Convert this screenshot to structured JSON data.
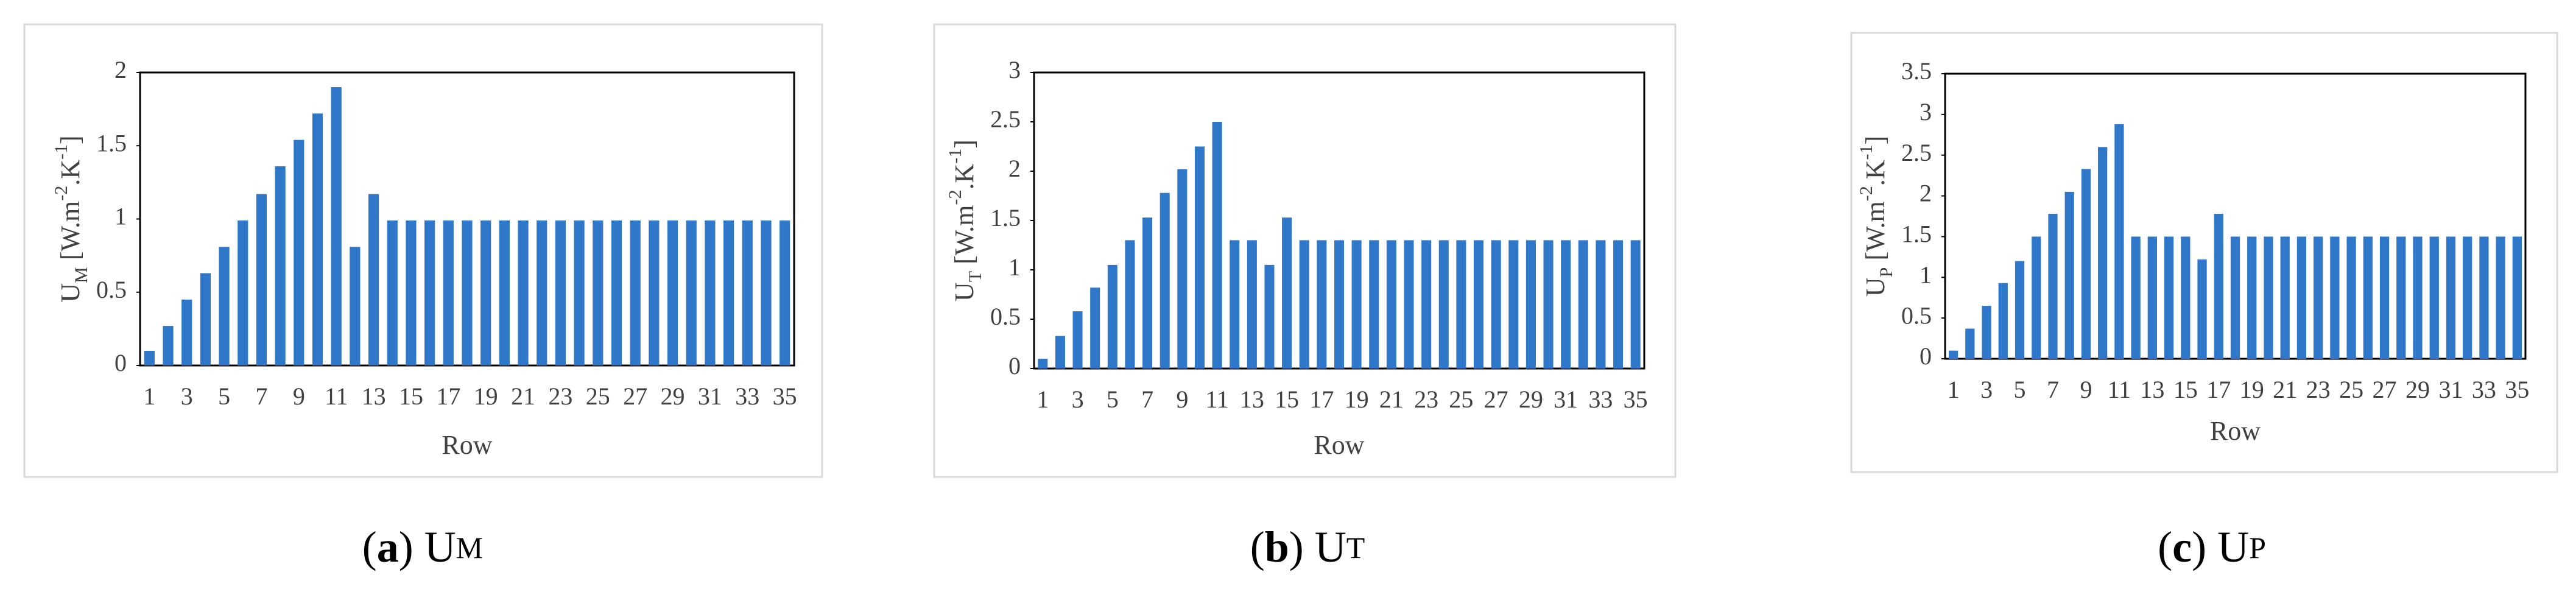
{
  "chart_data": [
    {
      "type": "bar",
      "color": "#2f77c8",
      "y_label": {
        "base": "U",
        "sub": "M",
        "unit": " [W.m",
        "sup1": "-2",
        "unit2": ".K",
        "sup2": "-1",
        "close": "]"
      },
      "x_label": "Row",
      "caption": {
        "open": "(",
        "letter": "a",
        "close": ")",
        "base": " U",
        "sub": "M"
      },
      "categories": [
        "1",
        null,
        "3",
        null,
        "5",
        null,
        "7",
        null,
        "9",
        null,
        "11",
        null,
        "13",
        null,
        "15",
        null,
        "17",
        null,
        "19",
        null,
        "21",
        null,
        "23",
        null,
        "25",
        null,
        "27",
        null,
        "29",
        null,
        "31",
        null,
        "33",
        null,
        "35"
      ],
      "values": [
        0.1,
        0.27,
        0.45,
        0.63,
        0.81,
        0.99,
        1.17,
        1.36,
        1.54,
        1.72,
        1.9,
        0.81,
        1.17,
        0.99,
        0.99,
        0.99,
        0.99,
        0.99,
        0.99,
        0.99,
        0.99,
        0.99,
        0.99,
        0.99,
        0.99,
        0.99,
        0.99,
        0.99,
        0.99,
        0.99,
        0.99,
        0.99,
        0.99,
        0.99,
        0.99
      ],
      "ylim": [
        0,
        2
      ],
      "yticks": [
        0,
        0.5,
        1,
        1.5,
        2
      ]
    },
    {
      "type": "bar",
      "color": "#2f77c8",
      "y_label": {
        "base": "U",
        "sub": "T",
        "unit": " [W.m",
        "sup1": "-2",
        "unit2": ".K",
        "sup2": "-1",
        "close": "]"
      },
      "x_label": "Row",
      "caption": {
        "open": "(",
        "letter": "b",
        "close": ")",
        "base": " U",
        "sub": "T"
      },
      "categories": [
        "1",
        null,
        "3",
        null,
        "5",
        null,
        "7",
        null,
        "9",
        null,
        "11",
        null,
        "13",
        null,
        "15",
        null,
        "17",
        null,
        "19",
        null,
        "21",
        null,
        "23",
        null,
        "25",
        null,
        "27",
        null,
        "29",
        null,
        "31",
        null,
        "33",
        null,
        "35"
      ],
      "values": [
        0.1,
        0.33,
        0.58,
        0.82,
        1.05,
        1.3,
        1.53,
        1.78,
        2.02,
        2.25,
        2.5,
        1.3,
        1.3,
        1.05,
        1.53,
        1.3,
        1.3,
        1.3,
        1.3,
        1.3,
        1.3,
        1.3,
        1.3,
        1.3,
        1.3,
        1.3,
        1.3,
        1.3,
        1.3,
        1.3,
        1.3,
        1.3,
        1.3,
        1.3,
        1.3
      ],
      "ylim": [
        0,
        3
      ],
      "yticks": [
        0,
        0.5,
        1,
        1.5,
        2,
        2.5,
        3
      ]
    },
    {
      "type": "bar",
      "color": "#2f77c8",
      "y_label": {
        "base": "U",
        "sub": "P",
        "unit": " [W.m",
        "sup1": "-2",
        "unit2": ".K",
        "sup2": "-1",
        "close": "]"
      },
      "x_label": "Row",
      "caption": {
        "open": "(",
        "letter": "c",
        "close": ")",
        "base": " U",
        "sub": "P"
      },
      "categories": [
        "1",
        null,
        "3",
        null,
        "5",
        null,
        "7",
        null,
        "9",
        null,
        "11",
        null,
        "13",
        null,
        "15",
        null,
        "17",
        null,
        "19",
        null,
        "21",
        null,
        "23",
        null,
        "25",
        null,
        "27",
        null,
        "29",
        null,
        "31",
        null,
        "33",
        null,
        "35"
      ],
      "values": [
        0.1,
        0.37,
        0.65,
        0.93,
        1.2,
        1.5,
        1.78,
        2.05,
        2.33,
        2.6,
        2.88,
        1.5,
        1.5,
        1.5,
        1.5,
        1.22,
        1.78,
        1.5,
        1.5,
        1.5,
        1.5,
        1.5,
        1.5,
        1.5,
        1.5,
        1.5,
        1.5,
        1.5,
        1.5,
        1.5,
        1.5,
        1.5,
        1.5,
        1.5,
        1.5
      ],
      "ylim": [
        0,
        3.5
      ],
      "yticks": [
        0,
        0.5,
        1,
        1.5,
        2,
        2.5,
        3,
        3.5
      ]
    }
  ]
}
